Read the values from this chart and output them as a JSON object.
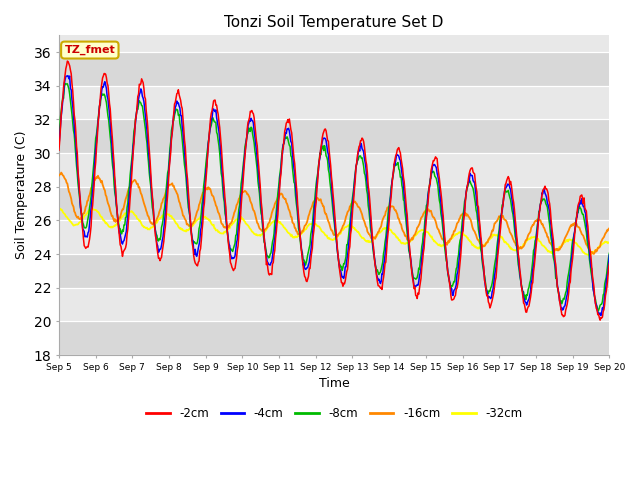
{
  "title": "Tonzi Soil Temperature Set D",
  "xlabel": "Time",
  "ylabel": "Soil Temperature (C)",
  "ylim": [
    18,
    37
  ],
  "yticks": [
    18,
    20,
    22,
    24,
    26,
    28,
    30,
    32,
    34,
    36
  ],
  "xtick_labels": [
    "Sep 5",
    "Sep 6",
    "Sep 7",
    "Sep 8",
    "Sep 9",
    "Sep 10",
    "Sep 11",
    "Sep 12",
    "Sep 13",
    "Sep 14",
    "Sep 15",
    "Sep 16",
    "Sep 17",
    "Sep 18",
    "Sep 19",
    "Sep 20"
  ],
  "series_colors": [
    "#ff0000",
    "#0000ff",
    "#00bb00",
    "#ff8800",
    "#ffff00"
  ],
  "series_labels": [
    "-2cm",
    "-4cm",
    "-8cm",
    "-16cm",
    "-32cm"
  ],
  "annotation_text": "TZ_fmet",
  "annotation_bg": "#ffffcc",
  "annotation_border": "#ccaa00",
  "annotation_color": "#cc0000",
  "stripe_light": "#e8e8e8",
  "stripe_dark": "#d8d8d8"
}
